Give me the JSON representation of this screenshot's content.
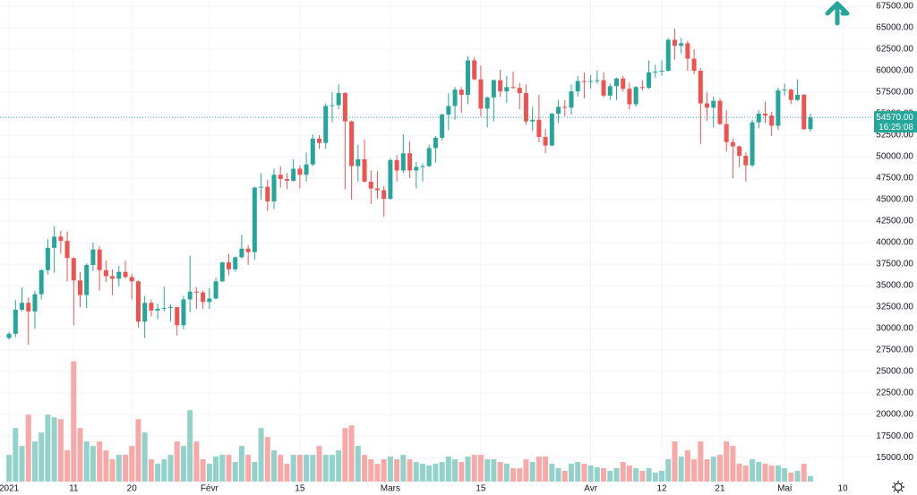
{
  "chart_data": {
    "type": "candlestick",
    "xlim": [
      -1.4,
      133.7
    ],
    "xticks": [
      {
        "value": 0,
        "label": "2021"
      },
      {
        "value": 10,
        "label": "11"
      },
      {
        "value": 19,
        "label": "20"
      },
      {
        "value": 31,
        "label": "Févr"
      },
      {
        "value": 45,
        "label": "15"
      },
      {
        "value": 59,
        "label": "Mars"
      },
      {
        "value": 73,
        "label": "15"
      },
      {
        "value": 90,
        "label": "Avr"
      },
      {
        "value": 101,
        "label": "12"
      },
      {
        "value": 110,
        "label": "21"
      },
      {
        "value": 120,
        "label": "Mai"
      },
      {
        "value": 129,
        "label": "10"
      }
    ],
    "ylim": [
      12200,
      68230
    ],
    "yticks": [
      {
        "value": 15000,
        "label": "15000.00"
      },
      {
        "value": 17500,
        "label": "17500.00"
      },
      {
        "value": 20000,
        "label": "20000.00"
      },
      {
        "value": 22500,
        "label": "22500.00"
      },
      {
        "value": 25000,
        "label": "25000.00"
      },
      {
        "value": 27500,
        "label": "27500.00"
      },
      {
        "value": 30000,
        "label": "30000.00"
      },
      {
        "value": 32500,
        "label": "32500.00"
      },
      {
        "value": 35000,
        "label": "35000.00"
      },
      {
        "value": 37500,
        "label": "37500.00"
      },
      {
        "value": 40000,
        "label": "40000.00"
      },
      {
        "value": 42500,
        "label": "42500.00"
      },
      {
        "value": 45000,
        "label": "45000.00"
      },
      {
        "value": 47500,
        "label": "47500.00"
      },
      {
        "value": 50000,
        "label": "50000.00"
      },
      {
        "value": 52500,
        "label": "52500.00"
      },
      {
        "value": 55000,
        "label": "55000.00"
      },
      {
        "value": 57500,
        "label": "57500.00"
      },
      {
        "value": 60000,
        "label": "60000.00"
      },
      {
        "value": 62500,
        "label": "62500.00"
      },
      {
        "value": 65000,
        "label": "65000.00"
      },
      {
        "value": 67500,
        "label": "67500.00"
      }
    ],
    "grid": true,
    "up_color": "#26a69a",
    "down_color": "#ef5350",
    "volume_up_color": "#93d1cb",
    "volume_down_color": "#f7a9a7",
    "volume_lim": [
      0,
      540
    ],
    "open": [
      28900,
      29400,
      32200,
      33000,
      32000,
      34000,
      36800,
      39400,
      40700,
      40200,
      38200,
      35600,
      33900,
      37400,
      39200,
      36800,
      36100,
      35800,
      36600,
      36000,
      35500,
      30800,
      33000,
      32100,
      32300,
      32400,
      32500,
      30400,
      33400,
      34300,
      34200,
      33100,
      33500,
      35500,
      37700,
      36900,
      38300,
      39300,
      38900,
      46400,
      46500,
      44800,
      47900,
      47400,
      47200,
      48600,
      47900,
      49100,
      52100,
      51600,
      55900,
      56000,
      57400,
      54100,
      48900,
      49700,
      47100,
      46300,
      46100,
      45100,
      49600,
      48400,
      50400,
      48400,
      48800,
      48900,
      51000,
      52200,
      54900,
      55900,
      57800,
      57200,
      61200,
      59000,
      55600,
      56900,
      58900,
      57600,
      58100,
      58000,
      57400,
      54100,
      54300,
      52300,
      51300,
      55000,
      55800,
      55700,
      57600,
      58800,
      58700,
      58800,
      58900,
      57100,
      58200,
      59100,
      57900,
      56100,
      58100,
      58000,
      59800,
      59900,
      60000,
      63600,
      62900,
      63200,
      61400,
      60000,
      56200,
      55700,
      56500,
      53800,
      51700,
      51200,
      50100,
      49000,
      54000,
      55000,
      54800,
      53600,
      57700,
      57800,
      56600,
      57200,
      53200
    ],
    "high": [
      29600,
      33300,
      34800,
      33600,
      34400,
      36900,
      40400,
      41900,
      41400,
      41300,
      38300,
      36600,
      37600,
      40000,
      39600,
      37900,
      36900,
      37300,
      37900,
      36400,
      35600,
      33800,
      33400,
      32900,
      34900,
      32800,
      32500,
      33800,
      38500,
      34800,
      34400,
      34700,
      35900,
      37800,
      38700,
      38400,
      40900,
      39700,
      46500,
      48100,
      47300,
      48600,
      48900,
      48100,
      49700,
      49000,
      50500,
      52600,
      52500,
      56200,
      57500,
      58400,
      57500,
      54200,
      51400,
      52000,
      48400,
      48300,
      46600,
      49800,
      50200,
      52600,
      51800,
      49400,
      49200,
      51400,
      52400,
      55000,
      57400,
      58100,
      58100,
      61700,
      61600,
      60600,
      57000,
      59000,
      60100,
      59400,
      59900,
      58600,
      58400,
      55800,
      57200,
      53200,
      55100,
      56600,
      56600,
      58400,
      59400,
      59800,
      59500,
      60000,
      59800,
      58500,
      59200,
      59400,
      58600,
      58200,
      58900,
      61200,
      60700,
      61200,
      63800,
      64900,
      63800,
      63500,
      62500,
      60300,
      57500,
      57000,
      56800,
      55400,
      52100,
      51300,
      50500,
      54300,
      55400,
      56400,
      55200,
      58000,
      58500,
      57900,
      59000,
      57300,
      55000
    ],
    "low": [
      28700,
      29000,
      32000,
      28100,
      30000,
      33400,
      36300,
      36500,
      38700,
      35500,
      30400,
      32500,
      32400,
      36700,
      34400,
      35400,
      33900,
      34900,
      35800,
      33400,
      30100,
      28900,
      31400,
      31100,
      32000,
      30800,
      29200,
      29900,
      31900,
      32300,
      32300,
      32300,
      33400,
      35400,
      36200,
      36600,
      38100,
      37400,
      38000,
      45000,
      43700,
      43900,
      46400,
      46200,
      47100,
      46300,
      47100,
      48900,
      50900,
      50900,
      54000,
      55500,
      46200,
      45000,
      47100,
      47000,
      44500,
      45100,
      43000,
      45000,
      47100,
      48100,
      47500,
      46300,
      47100,
      48800,
      49300,
      51900,
      53100,
      54300,
      55100,
      56100,
      58900,
      54700,
      53400,
      54100,
      57000,
      56300,
      57900,
      55500,
      53700,
      53000,
      51700,
      50400,
      51200,
      53900,
      54700,
      54900,
      57000,
      56800,
      57900,
      58500,
      56900,
      56600,
      56600,
      57600,
      55500,
      55800,
      57700,
      57900,
      59200,
      59400,
      59900,
      61300,
      62000,
      60000,
      59600,
      51500,
      54200,
      53400,
      53700,
      50600,
      47500,
      48800,
      47100,
      48800,
      53300,
      53900,
      52400,
      53100,
      57100,
      56100,
      56500,
      53100,
      52900
    ],
    "close": [
      29400,
      32200,
      33000,
      32000,
      34000,
      36800,
      39400,
      40700,
      40200,
      38200,
      35600,
      33900,
      37400,
      39200,
      36800,
      36100,
      35800,
      36600,
      36000,
      35500,
      30800,
      33000,
      32100,
      32300,
      32400,
      32500,
      30400,
      33400,
      34300,
      34200,
      33100,
      33500,
      35500,
      37700,
      36900,
      38300,
      39300,
      38900,
      46400,
      46500,
      44800,
      47900,
      47400,
      47200,
      48600,
      47900,
      49100,
      52100,
      51600,
      55900,
      56000,
      57400,
      54100,
      48900,
      49700,
      47100,
      46300,
      46100,
      45100,
      49600,
      48400,
      50400,
      48400,
      48800,
      48900,
      51000,
      52200,
      54900,
      55900,
      57800,
      57200,
      61200,
      59000,
      55600,
      56900,
      58900,
      57600,
      58100,
      58000,
      57400,
      54100,
      54300,
      52300,
      51300,
      55000,
      55800,
      55700,
      57600,
      58800,
      58700,
      58800,
      58900,
      57100,
      58200,
      59100,
      57900,
      56100,
      58100,
      58000,
      59800,
      59900,
      60000,
      63600,
      62900,
      63200,
      61400,
      60000,
      56200,
      55700,
      56500,
      53800,
      51700,
      51200,
      50100,
      49000,
      54000,
      55000,
      54800,
      53600,
      57700,
      57800,
      56600,
      57200,
      53200,
      54570
    ],
    "volume": [
      30,
      60,
      40,
      75,
      45,
      55,
      75,
      72,
      70,
      35,
      135,
      60,
      45,
      40,
      45,
      35,
      25,
      30,
      30,
      40,
      70,
      55,
      25,
      20,
      25,
      30,
      45,
      40,
      80,
      45,
      25,
      20,
      28,
      30,
      30,
      22,
      40,
      30,
      22,
      60,
      50,
      35,
      30,
      20,
      30,
      30,
      30,
      30,
      40,
      30,
      30,
      35,
      60,
      63,
      40,
      30,
      25,
      20,
      25,
      28,
      25,
      30,
      25,
      22,
      20,
      18,
      20,
      22,
      28,
      25,
      22,
      28,
      30,
      30,
      25,
      25,
      22,
      20,
      15,
      15,
      25,
      22,
      28,
      28,
      20,
      15,
      12,
      20,
      22,
      20,
      18,
      16,
      15,
      12,
      15,
      22,
      18,
      15,
      12,
      15,
      10,
      12,
      25,
      45,
      28,
      35,
      25,
      45,
      25,
      28,
      30,
      45,
      40,
      20,
      18,
      25,
      22,
      20,
      18,
      18,
      15,
      10,
      12,
      20,
      6
    ],
    "last_price": {
      "value": 54570,
      "label": "54570.00"
    },
    "countdown": "16:25:08"
  }
}
